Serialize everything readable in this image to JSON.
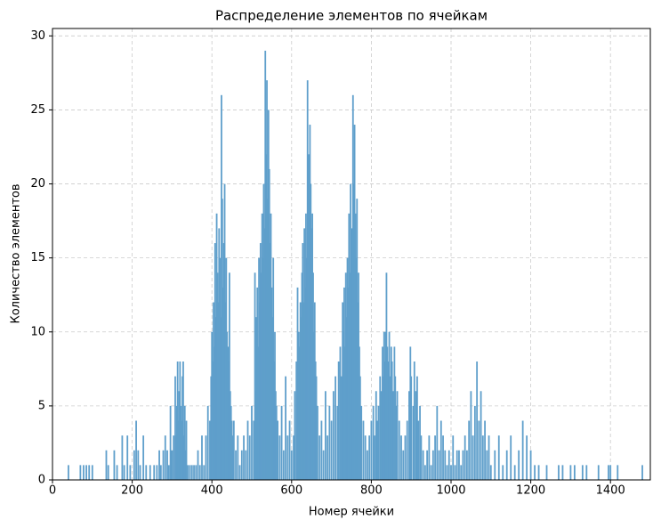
{
  "chart_data": {
    "type": "bar",
    "title": "Распределение элементов по ячейкам",
    "xlabel": "Номер ячейки",
    "ylabel": "Количество элементов",
    "color": "#5f9fcb",
    "grid": true,
    "xlim": [
      0,
      1500
    ],
    "ylim": [
      0,
      30.5
    ],
    "xticks": [
      0,
      200,
      400,
      600,
      800,
      1000,
      1200,
      1400
    ],
    "yticks": [
      0,
      5,
      10,
      15,
      20,
      25,
      30
    ],
    "x": [
      40,
      70,
      78,
      85,
      92,
      100,
      135,
      140,
      155,
      162,
      175,
      180,
      188,
      195,
      205,
      210,
      215,
      220,
      228,
      235,
      245,
      255,
      262,
      268,
      272,
      278,
      283,
      288,
      292,
      296,
      300,
      304,
      308,
      310,
      312,
      314,
      316,
      318,
      320,
      322,
      324,
      326,
      328,
      330,
      332,
      334,
      336,
      340,
      345,
      350,
      355,
      360,
      365,
      370,
      375,
      380,
      385,
      390,
      395,
      398,
      400,
      402,
      404,
      406,
      408,
      410,
      412,
      414,
      416,
      418,
      420,
      422,
      424,
      426,
      428,
      430,
      432,
      434,
      436,
      438,
      440,
      442,
      444,
      446,
      448,
      450,
      452,
      455,
      460,
      465,
      470,
      475,
      480,
      485,
      490,
      495,
      500,
      505,
      508,
      510,
      512,
      514,
      516,
      518,
      520,
      522,
      524,
      526,
      528,
      530,
      532,
      534,
      536,
      538,
      540,
      542,
      544,
      546,
      548,
      550,
      552,
      554,
      556,
      558,
      560,
      562,
      565,
      570,
      575,
      580,
      585,
      590,
      595,
      600,
      605,
      608,
      612,
      615,
      618,
      620,
      622,
      624,
      626,
      628,
      630,
      632,
      634,
      636,
      638,
      640,
      642,
      644,
      646,
      648,
      650,
      652,
      654,
      656,
      658,
      660,
      662,
      665,
      670,
      675,
      680,
      685,
      690,
      695,
      700,
      705,
      710,
      715,
      718,
      722,
      725,
      728,
      730,
      732,
      734,
      736,
      738,
      740,
      742,
      744,
      746,
      748,
      750,
      752,
      754,
      756,
      758,
      760,
      762,
      764,
      766,
      768,
      770,
      772,
      775,
      780,
      785,
      790,
      795,
      800,
      805,
      808,
      812,
      815,
      818,
      822,
      825,
      828,
      830,
      832,
      834,
      836,
      838,
      840,
      842,
      845,
      848,
      850,
      852,
      855,
      858,
      860,
      862,
      865,
      870,
      875,
      880,
      885,
      890,
      895,
      898,
      900,
      905,
      908,
      912,
      915,
      918,
      922,
      925,
      930,
      935,
      940,
      945,
      950,
      955,
      960,
      965,
      970,
      975,
      980,
      985,
      990,
      995,
      1000,
      1005,
      1010,
      1015,
      1020,
      1025,
      1030,
      1035,
      1040,
      1045,
      1050,
      1055,
      1060,
      1065,
      1070,
      1075,
      1080,
      1085,
      1090,
      1095,
      1100,
      1110,
      1120,
      1130,
      1140,
      1150,
      1160,
      1170,
      1180,
      1190,
      1200,
      1210,
      1220,
      1240,
      1270,
      1280,
      1300,
      1310,
      1330,
      1340,
      1370,
      1395,
      1400,
      1418,
      1480
    ],
    "values": [
      1,
      1,
      1,
      1,
      1,
      1,
      2,
      1,
      2,
      1,
      3,
      1,
      3,
      1,
      2,
      4,
      2,
      1,
      3,
      1,
      1,
      1,
      1,
      2,
      1,
      2,
      3,
      2,
      1,
      5,
      2,
      3,
      7,
      3,
      5,
      8,
      4,
      6,
      8,
      5,
      4,
      7,
      8,
      3,
      5,
      2,
      4,
      1,
      1,
      1,
      1,
      1,
      2,
      1,
      3,
      1,
      3,
      5,
      4,
      7,
      10,
      8,
      12,
      9,
      16,
      11,
      18,
      14,
      12,
      17,
      15,
      11,
      26,
      19,
      13,
      16,
      20,
      12,
      15,
      10,
      9,
      8,
      14,
      6,
      5,
      4,
      3,
      4,
      2,
      3,
      1,
      2,
      3,
      2,
      4,
      3,
      5,
      4,
      14,
      6,
      11,
      13,
      9,
      15,
      12,
      16,
      14,
      18,
      15,
      20,
      17,
      29,
      22,
      27,
      19,
      25,
      21,
      16,
      18,
      13,
      11,
      15,
      8,
      10,
      6,
      5,
      4,
      3,
      5,
      2,
      7,
      3,
      4,
      2,
      3,
      6,
      8,
      13,
      10,
      9,
      12,
      11,
      14,
      16,
      12,
      17,
      13,
      18,
      15,
      27,
      22,
      19,
      24,
      20,
      17,
      18,
      14,
      10,
      12,
      8,
      7,
      5,
      3,
      4,
      2,
      6,
      3,
      5,
      4,
      6,
      7,
      5,
      8,
      9,
      7,
      12,
      10,
      13,
      9,
      14,
      11,
      15,
      13,
      18,
      14,
      20,
      16,
      17,
      26,
      20,
      24,
      18,
      15,
      19,
      12,
      14,
      9,
      7,
      5,
      4,
      3,
      2,
      3,
      4,
      5,
      3,
      6,
      4,
      5,
      7,
      6,
      9,
      7,
      10,
      8,
      10,
      14,
      9,
      8,
      10,
      7,
      9,
      8,
      6,
      9,
      7,
      5,
      6,
      4,
      3,
      2,
      3,
      4,
      6,
      9,
      7,
      5,
      8,
      6,
      7,
      4,
      5,
      3,
      2,
      1,
      2,
      3,
      1,
      2,
      3,
      5,
      2,
      4,
      3,
      2,
      1,
      2,
      1,
      3,
      1,
      2,
      2,
      1,
      2,
      3,
      2,
      4,
      6,
      3,
      5,
      8,
      4,
      6,
      3,
      4,
      2,
      3,
      1,
      2,
      3,
      1,
      2,
      3,
      1,
      2,
      4,
      3,
      2,
      1,
      1,
      1,
      1,
      1,
      1,
      1,
      1,
      1,
      1,
      1,
      1,
      1,
      1
    ]
  }
}
